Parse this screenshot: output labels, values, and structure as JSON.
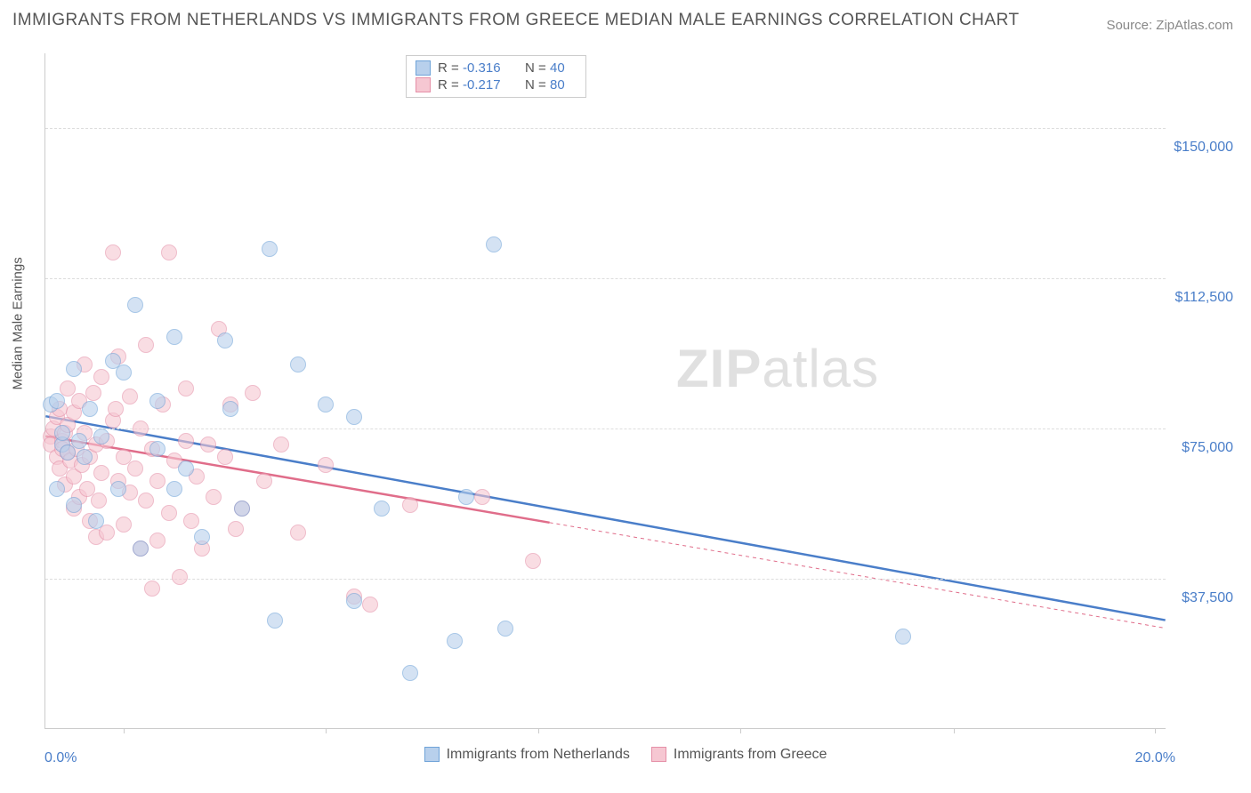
{
  "title": "IMMIGRANTS FROM NETHERLANDS VS IMMIGRANTS FROM GREECE MEDIAN MALE EARNINGS CORRELATION CHART",
  "source": "Source: ZipAtlas.com",
  "watermark_a": "ZIP",
  "watermark_b": "atlas",
  "ylabel": "Median Male Earnings",
  "chart": {
    "type": "scatter",
    "xlim": [
      0,
      20
    ],
    "ylim": [
      0,
      168750
    ],
    "x_tick_labels": {
      "left": "0.0%",
      "right": "20.0%"
    },
    "x_tick_marks_pct": [
      7,
      25,
      44,
      62,
      81,
      99
    ],
    "y_gridlines": [
      {
        "value": 37500,
        "label": "$37,500"
      },
      {
        "value": 75000,
        "label": "$75,000"
      },
      {
        "value": 112500,
        "label": "$112,500"
      },
      {
        "value": 150000,
        "label": "$150,000"
      }
    ],
    "background_color": "#ffffff",
    "grid_color": "#dddddd",
    "axis_color": "#cccccc",
    "tick_label_color": "#4a7ec9",
    "series": [
      {
        "name": "Immigrants from Netherlands",
        "fill_color": "#b8d0ec",
        "stroke_color": "#6fa3d8",
        "fill_opacity": 0.6,
        "trend": {
          "color": "#4a7ec9",
          "width": 2.5,
          "x1": 0,
          "y1": 78000,
          "x2": 20,
          "y2": 27000,
          "dash_from_x": null
        },
        "r_value": "-0.316",
        "n_value": "40",
        "marker_radius": 9,
        "points": [
          [
            0.1,
            81000
          ],
          [
            0.2,
            82000
          ],
          [
            0.2,
            60000
          ],
          [
            0.3,
            71000
          ],
          [
            0.3,
            74000
          ],
          [
            0.4,
            69000
          ],
          [
            0.5,
            90000
          ],
          [
            0.5,
            56000
          ],
          [
            0.6,
            72000
          ],
          [
            0.7,
            68000
          ],
          [
            0.8,
            80000
          ],
          [
            0.9,
            52000
          ],
          [
            1.0,
            73000
          ],
          [
            1.2,
            92000
          ],
          [
            1.3,
            60000
          ],
          [
            1.4,
            89000
          ],
          [
            1.6,
            106000
          ],
          [
            1.7,
            45000
          ],
          [
            2.0,
            70000
          ],
          [
            2.0,
            82000
          ],
          [
            2.3,
            98000
          ],
          [
            2.3,
            60000
          ],
          [
            2.5,
            65000
          ],
          [
            2.8,
            48000
          ],
          [
            3.2,
            97000
          ],
          [
            3.3,
            80000
          ],
          [
            3.5,
            55000
          ],
          [
            4.0,
            120000
          ],
          [
            4.1,
            27000
          ],
          [
            4.5,
            91000
          ],
          [
            5.0,
            81000
          ],
          [
            5.5,
            78000
          ],
          [
            5.5,
            32000
          ],
          [
            6.0,
            55000
          ],
          [
            6.5,
            14000
          ],
          [
            7.3,
            22000
          ],
          [
            7.5,
            58000
          ],
          [
            8.0,
            121000
          ],
          [
            8.2,
            25000
          ],
          [
            15.3,
            23000
          ]
        ]
      },
      {
        "name": "Immigrants from Greece",
        "fill_color": "#f6c7d2",
        "stroke_color": "#e590a8",
        "fill_opacity": 0.6,
        "trend": {
          "color": "#e06d8a",
          "width": 2.5,
          "x1": 0,
          "y1": 73000,
          "x2": 20,
          "y2": 25000,
          "dash_from_x": 9
        },
        "r_value": "-0.217",
        "n_value": "80",
        "marker_radius": 9,
        "points": [
          [
            0.1,
            73000
          ],
          [
            0.1,
            71000
          ],
          [
            0.15,
            75000
          ],
          [
            0.2,
            78000
          ],
          [
            0.2,
            68000
          ],
          [
            0.25,
            80000
          ],
          [
            0.25,
            65000
          ],
          [
            0.3,
            72000
          ],
          [
            0.3,
            70000
          ],
          [
            0.35,
            74000
          ],
          [
            0.35,
            61000
          ],
          [
            0.4,
            76000
          ],
          [
            0.4,
            69000
          ],
          [
            0.4,
            85000
          ],
          [
            0.45,
            67000
          ],
          [
            0.5,
            79000
          ],
          [
            0.5,
            63000
          ],
          [
            0.5,
            55000
          ],
          [
            0.55,
            70000
          ],
          [
            0.6,
            82000
          ],
          [
            0.6,
            58000
          ],
          [
            0.65,
            66000
          ],
          [
            0.7,
            74000
          ],
          [
            0.7,
            91000
          ],
          [
            0.75,
            60000
          ],
          [
            0.8,
            68000
          ],
          [
            0.8,
            52000
          ],
          [
            0.85,
            84000
          ],
          [
            0.9,
            71000
          ],
          [
            0.9,
            48000
          ],
          [
            0.95,
            57000
          ],
          [
            1.0,
            88000
          ],
          [
            1.0,
            64000
          ],
          [
            1.1,
            72000
          ],
          [
            1.1,
            49000
          ],
          [
            1.2,
            119000
          ],
          [
            1.2,
            77000
          ],
          [
            1.25,
            80000
          ],
          [
            1.3,
            62000
          ],
          [
            1.3,
            93000
          ],
          [
            1.4,
            68000
          ],
          [
            1.4,
            51000
          ],
          [
            1.5,
            59000
          ],
          [
            1.5,
            83000
          ],
          [
            1.6,
            65000
          ],
          [
            1.7,
            75000
          ],
          [
            1.7,
            45000
          ],
          [
            1.8,
            57000
          ],
          [
            1.8,
            96000
          ],
          [
            1.9,
            70000
          ],
          [
            1.9,
            35000
          ],
          [
            2.0,
            47000
          ],
          [
            2.0,
            62000
          ],
          [
            2.1,
            81000
          ],
          [
            2.2,
            54000
          ],
          [
            2.2,
            119000
          ],
          [
            2.3,
            67000
          ],
          [
            2.4,
            38000
          ],
          [
            2.5,
            72000
          ],
          [
            2.5,
            85000
          ],
          [
            2.6,
            52000
          ],
          [
            2.7,
            63000
          ],
          [
            2.8,
            45000
          ],
          [
            2.9,
            71000
          ],
          [
            3.0,
            58000
          ],
          [
            3.1,
            100000
          ],
          [
            3.2,
            68000
          ],
          [
            3.3,
            81000
          ],
          [
            3.4,
            50000
          ],
          [
            3.5,
            55000
          ],
          [
            3.7,
            84000
          ],
          [
            3.9,
            62000
          ],
          [
            4.2,
            71000
          ],
          [
            4.5,
            49000
          ],
          [
            5.0,
            66000
          ],
          [
            5.5,
            33000
          ],
          [
            5.8,
            31000
          ],
          [
            6.5,
            56000
          ],
          [
            7.8,
            58000
          ],
          [
            8.7,
            42000
          ]
        ]
      }
    ]
  },
  "legend_rn": {
    "r_label": "R =",
    "n_label": "N ="
  },
  "bottom_legend_labels": [
    "Immigrants from Netherlands",
    "Immigrants from Greece"
  ]
}
